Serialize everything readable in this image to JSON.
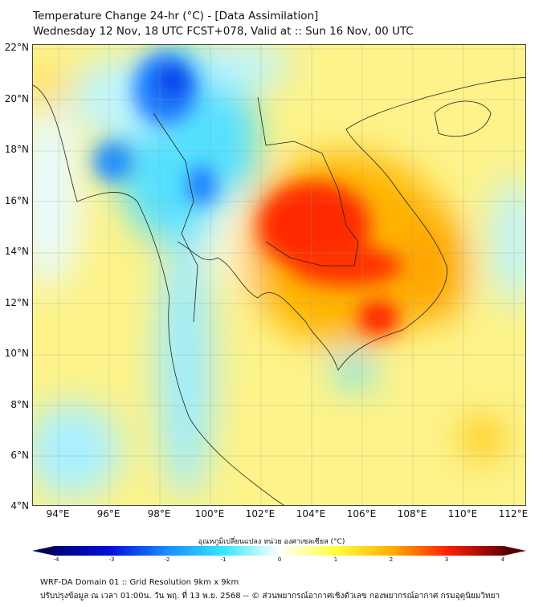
{
  "title": {
    "line1": "Temperature Change 24-hr (°C) - [Data Assimilation]",
    "line2": "Wednesday 12 Nov, 18 UTC FCST+078, Valid at :: Sun 16 Nov, 00 UTC"
  },
  "map": {
    "lat_labels": [
      "22°N",
      "20°N",
      "18°N",
      "16°N",
      "14°N",
      "12°N",
      "10°N",
      "8°N",
      "6°N",
      "4°N"
    ],
    "lon_labels": [
      "94°E",
      "96°E",
      "98°E",
      "100°E",
      "102°E",
      "104°E",
      "106°E",
      "108°E",
      "110°E",
      "112°E"
    ]
  },
  "colorbar": {
    "label": "อุณหภูมิเปลี่ยนแปลง หน่วย องศาเซลเซียส (°C)",
    "ticks": [
      "-4",
      "-3",
      "-2",
      "-1",
      "0",
      "1",
      "2",
      "3",
      "4"
    ],
    "colors": [
      "#00007a",
      "#0010e0",
      "#1a8cff",
      "#33e6ff",
      "#ffffff",
      "#ffff40",
      "#ffb000",
      "#ff2000",
      "#6b0000"
    ]
  },
  "footer": {
    "line1": "WRF-DA Domain 01 :: Grid Resolution 9km x 9km",
    "line2": "ปรับปรุงข้อมูล ณ เวลา 01:00น. วัน พฤ. ที่ 13 พ.ย. 2568 -- © ส่วนพยากรณ์อากาศเชิงตัวเลข กองพยากรณ์อากาศ กรมอุตุนิยมวิทยา"
  }
}
